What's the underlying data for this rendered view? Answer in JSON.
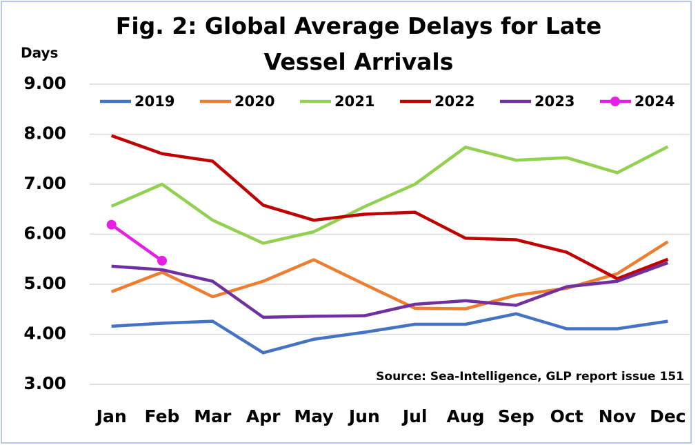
{
  "chart_data": {
    "type": "line",
    "title": "Fig. 2: Global Average Delays for Late Vessel Arrivals",
    "y_label": "Days",
    "annotation": "Source: Sea-Intelligence, GLP report issue 151",
    "categories": [
      "Jan",
      "Feb",
      "Mar",
      "Apr",
      "May",
      "Jun",
      "Jul",
      "Aug",
      "Sep",
      "Oct",
      "Nov",
      "Dec"
    ],
    "series": [
      {
        "name": "2019",
        "color": "#4472c4",
        "values": [
          4.16,
          4.22,
          4.26,
          3.63,
          3.9,
          4.04,
          4.2,
          4.2,
          4.41,
          4.11,
          4.11,
          4.26
        ]
      },
      {
        "name": "2020",
        "color": "#ed7d31",
        "values": [
          4.85,
          5.24,
          4.75,
          5.06,
          5.49,
          5.0,
          4.52,
          4.51,
          4.78,
          4.92,
          5.21,
          5.85
        ]
      },
      {
        "name": "2021",
        "color": "#92d050",
        "values": [
          6.56,
          7.0,
          6.28,
          5.82,
          6.05,
          6.55,
          7.0,
          7.74,
          7.48,
          7.53,
          7.23,
          7.75
        ]
      },
      {
        "name": "2022",
        "color": "#c00000",
        "values": [
          7.97,
          7.61,
          7.46,
          6.58,
          6.28,
          6.4,
          6.44,
          5.92,
          5.89,
          5.64,
          5.11,
          5.5
        ]
      },
      {
        "name": "2023",
        "color": "#7030a0",
        "values": [
          5.36,
          5.29,
          5.06,
          4.34,
          4.36,
          4.37,
          4.6,
          4.67,
          4.58,
          4.95,
          5.06,
          5.43
        ]
      },
      {
        "name": "2024",
        "color": "#e61ee6",
        "marker": true,
        "values": [
          6.19,
          5.47,
          null,
          null,
          null,
          null,
          null,
          null,
          null,
          null,
          null,
          null
        ]
      }
    ],
    "ylim": [
      3,
      9
    ],
    "yticks": [
      {
        "value": 3,
        "label": "3.00"
      },
      {
        "value": 4,
        "label": "4.00"
      },
      {
        "value": 5,
        "label": "5.00"
      },
      {
        "value": 6,
        "label": "6.00"
      },
      {
        "value": 7,
        "label": "7.00"
      },
      {
        "value": 8,
        "label": "8.00"
      },
      {
        "value": 9,
        "label": "9.00"
      }
    ],
    "grid": true,
    "legend": "top"
  }
}
